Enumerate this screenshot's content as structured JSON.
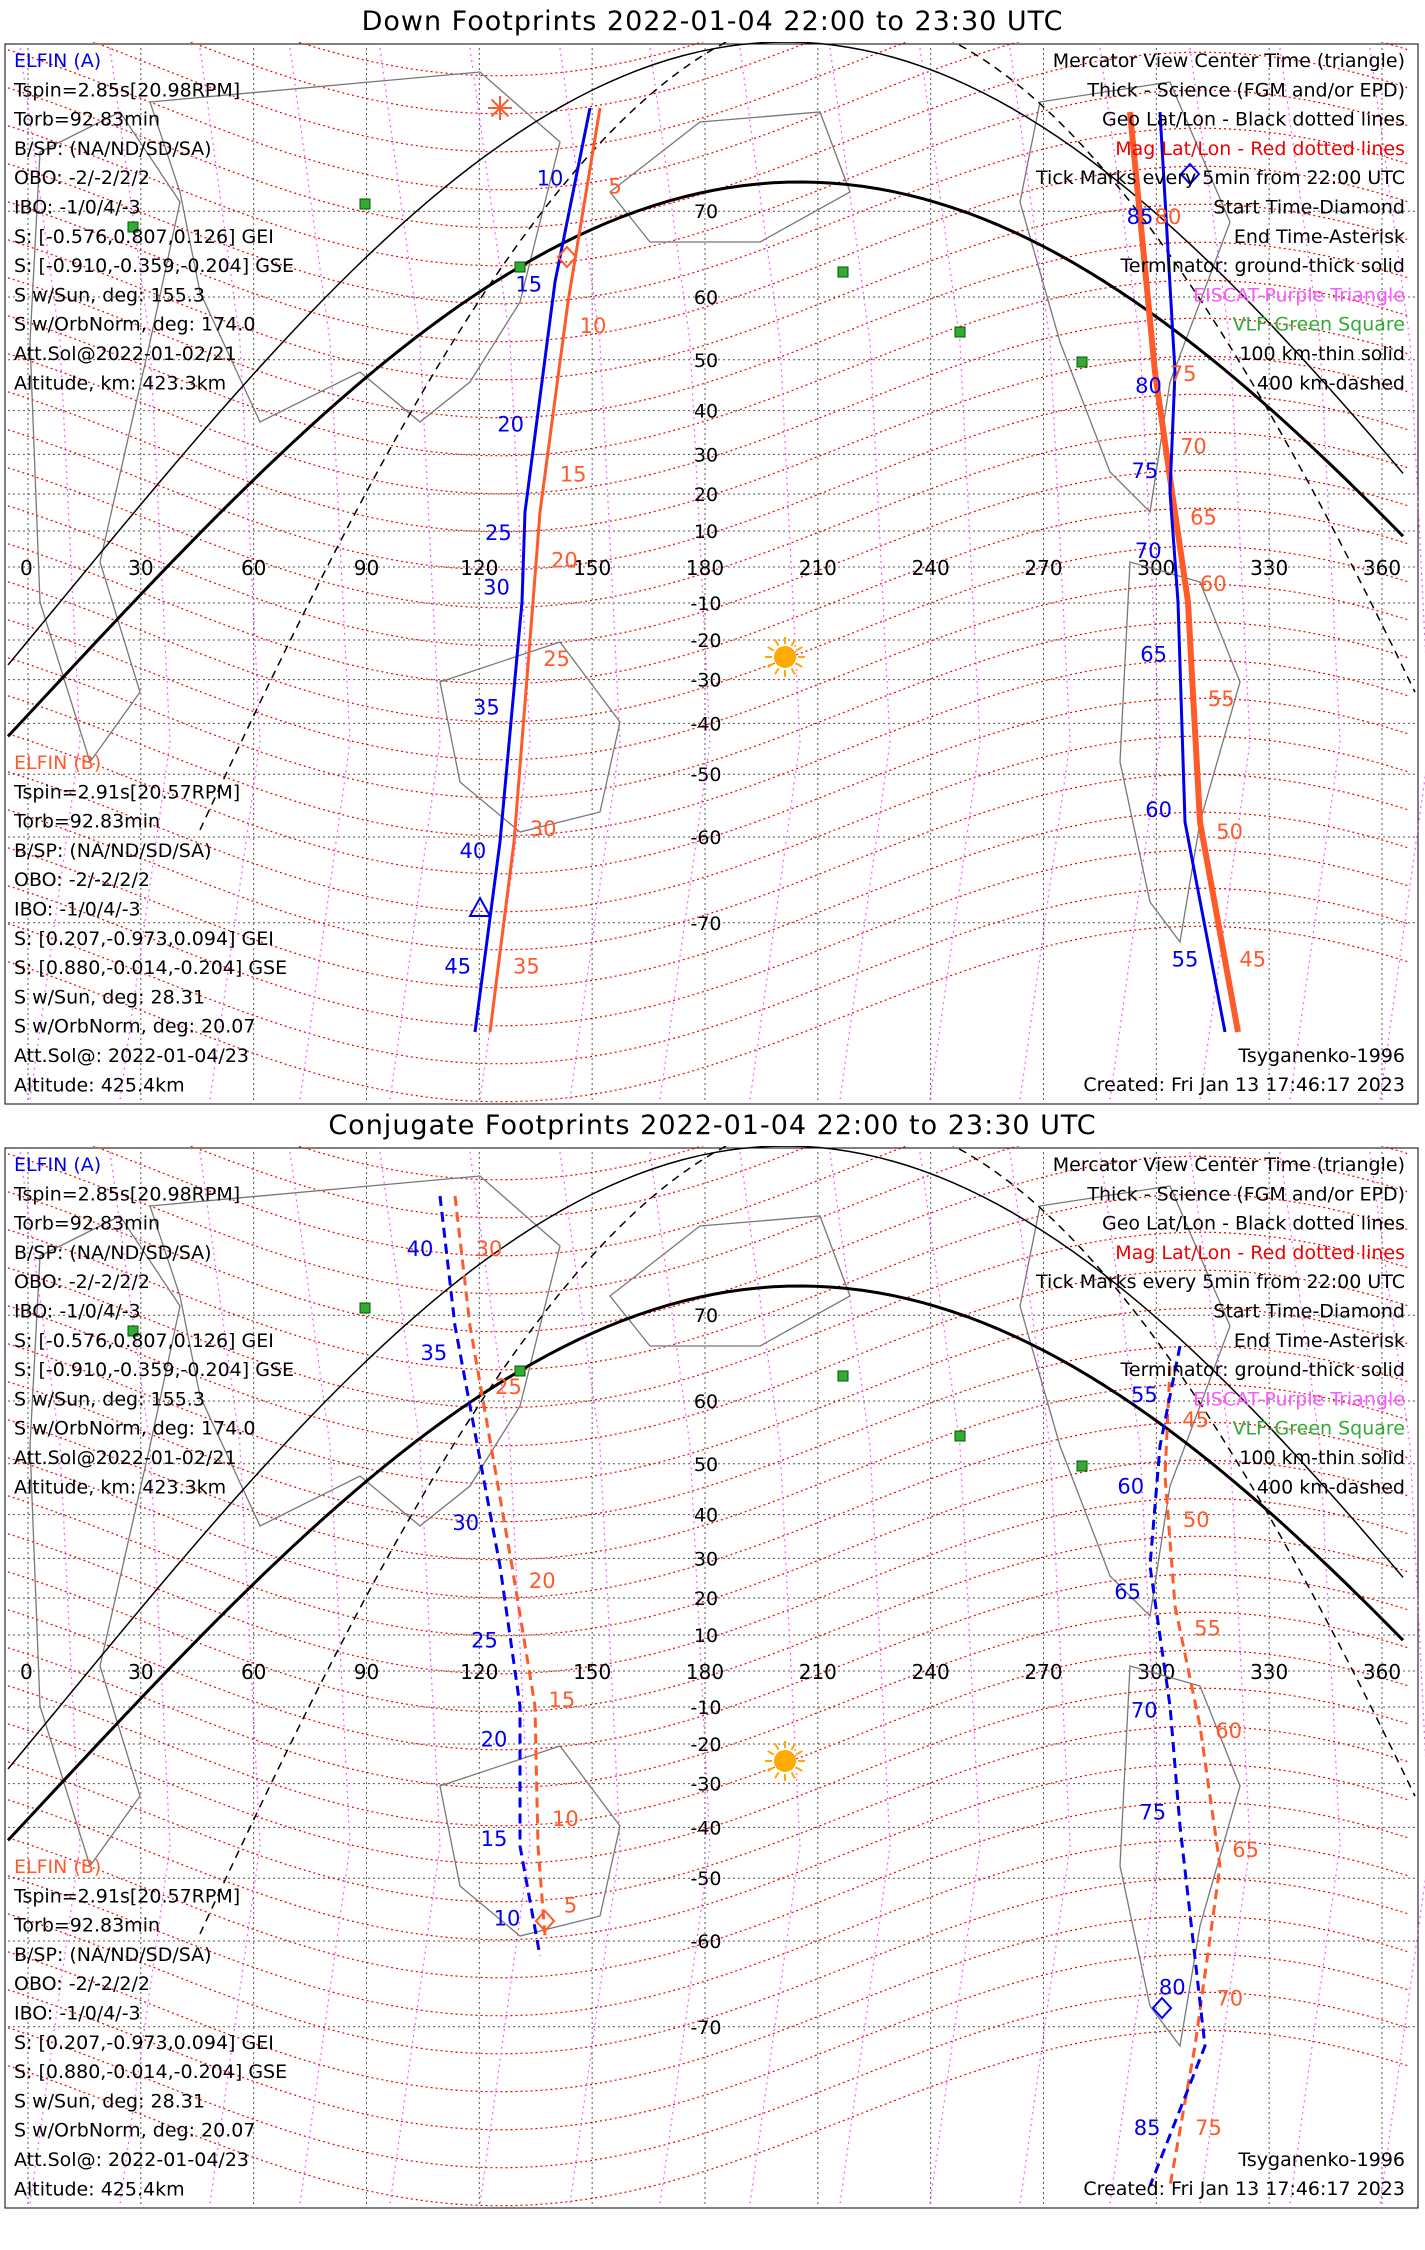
{
  "colors": {
    "blue": "#0000ee",
    "orange": "#ff5a2a",
    "red": "#ee0000",
    "purple": "#ff55ff",
    "green": "#33aa33",
    "sun": "#ffaa00"
  },
  "panels": [
    {
      "id": "down",
      "title": "Down Footprints 2022-01-04 22:00 to 23:30 UTC",
      "elfin_a": [
        "ELFIN (A)",
        "Tspin=2.85s[20.98RPM]",
        "Torb=92.83min",
        "B/SP: (NA/ND/SD/SA)",
        "OBO: -2/-2/2/2",
        "IBO: -1/0/4/-3",
        "S: [-0.576,0.807,0.126] GEI",
        "S: [-0.910,-0.359,-0.204] GSE",
        "S w/Sun, deg: 155.3",
        "S w/OrbNorm, deg: 174.0",
        "Att.Sol@2022-01-02/21",
        "Altitude, km: 423.3km"
      ],
      "elfin_b": [
        "ELFIN (B)",
        "Tspin=2.91s[20.57RPM]",
        "Torb=92.83min",
        "B/SP: (NA/ND/SD/SA)",
        "OBO: -2/-2/2/2",
        "IBO: -1/0/4/-3",
        "S: [0.207,-0.973,0.094] GEI",
        "S: [0.880,-0.014,-0.204] GSE",
        "S w/Sun, deg: 28.31",
        "S w/OrbNorm, deg: 20.07",
        "Att.Sol@: 2022-01-04/23",
        "Altitude: 425.4km"
      ],
      "legend": [
        "Mercator View Center Time (triangle)",
        "Thick - Science (FGM and/or EPD)",
        "Geo Lat/Lon - Black dotted lines",
        "Mag Lat/Lon - Red dotted lines",
        "Tick Marks every 5min from 22:00 UTC",
        "Start Time-Diamond",
        "End Time-Asterisk",
        "Terminator: ground-thick solid",
        "EISCAT-Purple Triangle",
        "VLF-Green Square",
        "100 km-thin solid",
        "400 km-dashed"
      ],
      "model": "Tsyganenko-1996",
      "created": "Created: Fri Jan 13 17:46:17 2023",
      "blue_ticks": [
        "10",
        "15",
        "20",
        "25",
        "30",
        "35",
        "40",
        "45",
        "85",
        "80",
        "75",
        "70",
        "65",
        "60",
        "55"
      ],
      "orange_ticks": [
        "5",
        "10",
        "15",
        "20",
        "25",
        "30",
        "35",
        "80",
        "75",
        "70",
        "65",
        "60",
        "55",
        "50",
        "45"
      ]
    },
    {
      "id": "conj",
      "title": "Conjugate Footprints 2022-01-04 22:00 to 23:30 UTC",
      "elfin_a": [
        "ELFIN (A)",
        "Tspin=2.85s[20.98RPM]",
        "Torb=92.83min",
        "B/SP: (NA/ND/SD/SA)",
        "OBO: -2/-2/2/2",
        "IBO: -1/0/4/-3",
        "S: [-0.576,0.807,0.126] GEI",
        "S: [-0.910,-0.359,-0.204] GSE",
        "S w/Sun, deg: 155.3",
        "S w/OrbNorm, deg: 174.0",
        "Att.Sol@2022-01-02/21",
        "Altitude, km: 423.3km"
      ],
      "elfin_b": [
        "ELFIN (B)",
        "Tspin=2.91s[20.57RPM]",
        "Torb=92.83min",
        "B/SP: (NA/ND/SD/SA)",
        "OBO: -2/-2/2/2",
        "IBO: -1/0/4/-3",
        "S: [0.207,-0.973,0.094] GEI",
        "S: [0.880,-0.014,-0.204] GSE",
        "S w/Sun, deg: 28.31",
        "S w/OrbNorm, deg: 20.07",
        "Att.Sol@: 2022-01-04/23",
        "Altitude: 425.4km"
      ],
      "legend": [
        "Mercator View Center Time (triangle)",
        "Thick - Science (FGM and/or EPD)",
        "Geo Lat/Lon - Black dotted lines",
        "Mag Lat/Lon - Red dotted lines",
        "Tick Marks every 5min from 22:00 UTC",
        "Start Time-Diamond",
        "End Time-Asterisk",
        "Terminator: ground-thick solid",
        "EISCAT-Purple Triangle",
        "VLF-Green Square",
        "100 km-thin solid",
        "400 km-dashed"
      ],
      "model": "Tsyganenko-1996",
      "created": "Created: Fri Jan 13 17:46:17 2023",
      "blue_ticks": [
        "40",
        "35",
        "30",
        "25",
        "20",
        "15",
        "10",
        "55",
        "60",
        "65",
        "70",
        "75",
        "80",
        "85"
      ],
      "orange_ticks": [
        "30",
        "25",
        "20",
        "15",
        "10",
        "5",
        "45",
        "50",
        "55",
        "60",
        "65",
        "70",
        "75"
      ]
    }
  ],
  "axes": {
    "lon_labels": [
      "0",
      "30",
      "60",
      "90",
      "120",
      "150",
      "180",
      "210",
      "240",
      "270",
      "300",
      "330",
      "360"
    ],
    "lat_labels": [
      "70",
      "60",
      "50",
      "40",
      "30",
      "20",
      "10",
      "-10",
      "-20",
      "-30",
      "-40",
      "-50",
      "-60",
      "-70"
    ]
  }
}
